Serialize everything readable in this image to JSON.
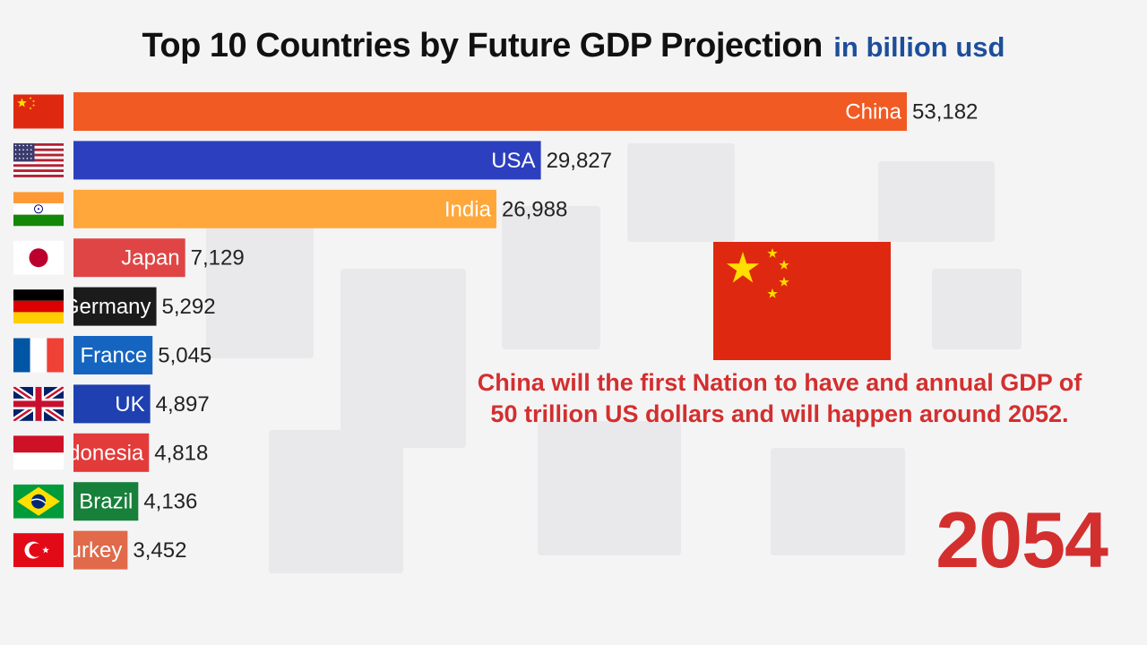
{
  "title": "Top 10 Countries by Future GDP Projection",
  "unit_label": "in billion usd",
  "annotation": {
    "line1": "China will the first Nation to have and annual GDP of",
    "line2": "50 trillion US dollars and will happen around 2052."
  },
  "year": "2054",
  "chart_data": {
    "type": "bar",
    "orientation": "horizontal",
    "title": "Top 10 Countries by Future GDP Projection",
    "unit": "in billion usd",
    "categories": [
      "China",
      "USA",
      "India",
      "Japan",
      "Germany",
      "France",
      "UK",
      "Indonesia",
      "Brazil",
      "Turkey"
    ],
    "values": [
      53182,
      29827,
      26988,
      7129,
      5292,
      5045,
      4897,
      4818,
      4136,
      3452
    ],
    "value_labels": [
      "53,182",
      "29,827",
      "26,988",
      "7,129",
      "5,292",
      "5,045",
      "4,897",
      "4,818",
      "4,136",
      "3,452"
    ],
    "colors": [
      "#f15a22",
      "#2b3fbf",
      "#ffa73a",
      "#e04545",
      "#1b1b1b",
      "#1565c0",
      "#1e40b0",
      "#e33a3a",
      "#17803a",
      "#e06a4a"
    ],
    "flags": [
      "china-flag",
      "usa-flag",
      "india-flag",
      "japan-flag",
      "germany-flag",
      "france-flag",
      "uk-flag",
      "indonesia-flag",
      "brazil-flag",
      "turkey-flag"
    ],
    "highlight_flag": "china-flag"
  }
}
